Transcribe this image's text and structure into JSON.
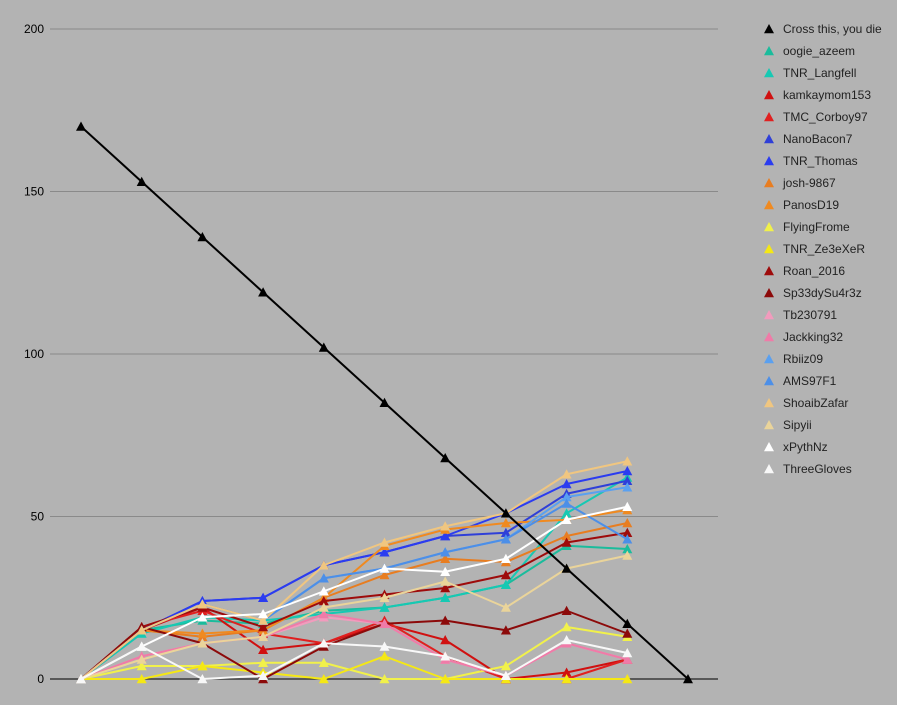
{
  "chart_data": {
    "type": "line",
    "x": [
      0,
      1,
      2,
      3,
      4,
      5,
      6,
      7,
      8,
      9,
      10
    ],
    "ylim": [
      0,
      200
    ],
    "yticks": [
      "0",
      "50",
      "100",
      "150",
      "200"
    ],
    "grid": true,
    "legend_position": "right",
    "series": [
      {
        "name": "Cross this, you die",
        "color": "#000000",
        "values": [
          170,
          153,
          136,
          119,
          102,
          85,
          68,
          51,
          34,
          17,
          0
        ]
      },
      {
        "name": "oogie_azeem",
        "color": "#1abc9c",
        "values": [
          0,
          15,
          18,
          17,
          21,
          22,
          25,
          29,
          41,
          40,
          null
        ]
      },
      {
        "name": "TNR_Langfell",
        "color": "#16c9b3",
        "values": [
          0,
          14,
          19,
          18,
          20,
          22,
          25,
          29,
          51,
          62,
          null
        ]
      },
      {
        "name": "kamkaymom153",
        "color": "#d01010",
        "values": [
          0,
          15,
          22,
          9,
          11,
          17,
          12,
          0,
          2,
          6,
          null
        ]
      },
      {
        "name": "TMC_Corboy97",
        "color": "#e02020",
        "values": [
          0,
          16,
          21,
          14,
          11,
          18,
          7,
          0,
          0,
          6,
          null
        ]
      },
      {
        "name": "NanoBacon7",
        "color": "#2f3fd8",
        "values": [
          0,
          15,
          24,
          25,
          35,
          39,
          44,
          45,
          57,
          61,
          null
        ]
      },
      {
        "name": "TNR_Thomas",
        "color": "#2b3cf0",
        "values": [
          0,
          15,
          24,
          25,
          35,
          39,
          44,
          51,
          60,
          64,
          null
        ]
      },
      {
        "name": "josh-9867",
        "color": "#e87d20",
        "values": [
          0,
          15,
          13,
          15,
          25,
          32,
          37,
          36,
          44,
          48,
          null
        ]
      },
      {
        "name": "PanosD19",
        "color": "#f08a20",
        "values": [
          0,
          15,
          14,
          15,
          25,
          41,
          46,
          48,
          49,
          52,
          null
        ]
      },
      {
        "name": "FlyingFrome",
        "color": "#f1f14a",
        "values": [
          0,
          4,
          4,
          5,
          5,
          0,
          0,
          4,
          16,
          13,
          null
        ]
      },
      {
        "name": "TNR_Ze3eXeR",
        "color": "#f5e814",
        "values": [
          0,
          0,
          4,
          2,
          0,
          7,
          0,
          0,
          0,
          0,
          null
        ]
      },
      {
        "name": "Roan_2016",
        "color": "#9e0b0b",
        "values": [
          0,
          16,
          22,
          16,
          24,
          26,
          28,
          32,
          42,
          45,
          null
        ]
      },
      {
        "name": "Sp33dySu4r3z",
        "color": "#8c0a0a",
        "values": [
          0,
          16,
          11,
          0,
          10,
          17,
          18,
          15,
          21,
          14,
          null
        ]
      },
      {
        "name": "Tb230791",
        "color": "#f29bbd",
        "values": [
          0,
          7,
          11,
          13,
          19,
          17,
          6,
          1,
          11,
          6,
          null
        ]
      },
      {
        "name": "Jackking32",
        "color": "#f07ba8",
        "values": [
          0,
          7,
          11,
          13,
          20,
          17,
          6,
          1,
          11,
          6,
          null
        ]
      },
      {
        "name": "Rbiiz09",
        "color": "#5aa0f0",
        "values": [
          0,
          15,
          23,
          18,
          31,
          34,
          39,
          43,
          56,
          59,
          null
        ]
      },
      {
        "name": "AMS97F1",
        "color": "#4c8fe8",
        "values": [
          0,
          15,
          23,
          18,
          31,
          34,
          39,
          43,
          54,
          43,
          null
        ]
      },
      {
        "name": "ShoaibZafar",
        "color": "#f0c680",
        "values": [
          0,
          15,
          23,
          18,
          35,
          42,
          47,
          51,
          63,
          67,
          null
        ]
      },
      {
        "name": "Sipyii",
        "color": "#ead49a",
        "values": [
          0,
          6,
          11,
          13,
          22,
          25,
          30,
          22,
          34,
          38,
          null
        ]
      },
      {
        "name": "xPythNz",
        "color": "#ffffff",
        "values": [
          0,
          10,
          19,
          20,
          27,
          34,
          33,
          37,
          49,
          53,
          null
        ]
      },
      {
        "name": "ThreeGloves",
        "color": "#f8f8f8",
        "values": [
          0,
          10,
          0,
          1,
          11,
          10,
          7,
          1,
          12,
          8,
          null
        ]
      }
    ]
  }
}
